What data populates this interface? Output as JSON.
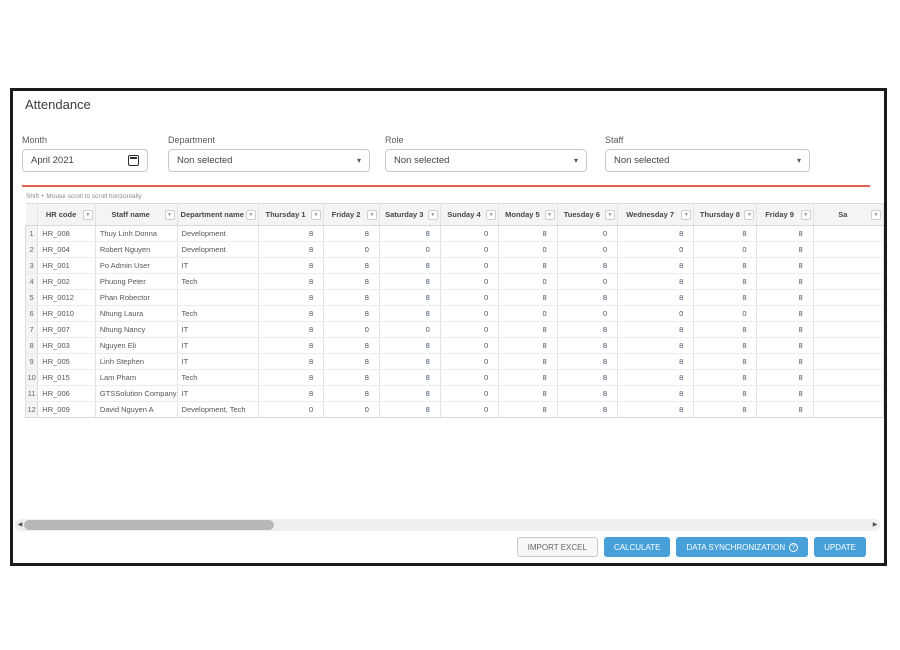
{
  "page": {
    "title": "Attendance"
  },
  "filters": {
    "month": {
      "label": "Month",
      "value": "April 2021"
    },
    "department": {
      "label": "Department",
      "value": "Non selected"
    },
    "role": {
      "label": "Role",
      "value": "Non selected"
    },
    "staff": {
      "label": "Staff",
      "value": "Non selected"
    }
  },
  "table": {
    "hint": "Shift + Mouse scroll to scroll horizontally",
    "columns": [
      "HR code",
      "Staff name",
      "Department name",
      "Thursday 1",
      "Friday 2",
      "Saturday 3",
      "Sunday 4",
      "Monday 5",
      "Tuesday 6",
      "Wednesday 7",
      "Thursday 8",
      "Friday 9",
      "Sa"
    ],
    "day_columns": [
      "Thursday 1",
      "Friday 2",
      "Saturday 3",
      "Sunday 4",
      "Monday 5",
      "Tuesday 6",
      "Wednesday 7",
      "Thursday 8",
      "Friday 9"
    ],
    "rows": [
      {
        "index": 1,
        "hr_code": "HR_008",
        "staff_name": "Thuy Linh Donna",
        "department": "Development",
        "values": [
          8,
          8,
          8,
          0,
          8,
          0,
          8,
          8,
          8
        ]
      },
      {
        "index": 2,
        "hr_code": "HR_004",
        "staff_name": "Robert Nguyen",
        "department": "Development",
        "values": [
          8,
          0,
          0,
          0,
          0,
          0,
          0,
          0,
          8
        ]
      },
      {
        "index": 3,
        "hr_code": "HR_001",
        "staff_name": "Po Admin User",
        "department": "IT",
        "values": [
          8,
          8,
          8,
          0,
          8,
          8,
          8,
          8,
          8
        ]
      },
      {
        "index": 4,
        "hr_code": "HR_002",
        "staff_name": "Phuong Peter",
        "department": "Tech",
        "values": [
          8,
          8,
          8,
          0,
          0,
          0,
          8,
          8,
          8
        ]
      },
      {
        "index": 5,
        "hr_code": "HR_0012",
        "staff_name": "Phan Robector",
        "department": "",
        "values": [
          8,
          8,
          8,
          0,
          8,
          8,
          8,
          8,
          8
        ]
      },
      {
        "index": 6,
        "hr_code": "HR_0010",
        "staff_name": "Nhung Laura",
        "department": "Tech",
        "values": [
          8,
          8,
          8,
          0,
          0,
          0,
          0,
          0,
          8
        ]
      },
      {
        "index": 7,
        "hr_code": "HR_007",
        "staff_name": "Nhung Nancy",
        "department": "IT",
        "values": [
          8,
          0,
          0,
          0,
          8,
          8,
          8,
          8,
          8
        ]
      },
      {
        "index": 8,
        "hr_code": "HR_003",
        "staff_name": "Nguyen Eli",
        "department": "IT",
        "values": [
          8,
          8,
          8,
          0,
          8,
          8,
          8,
          8,
          8
        ]
      },
      {
        "index": 9,
        "hr_code": "HR_005",
        "staff_name": "Linh Stephen",
        "department": "IT",
        "values": [
          8,
          8,
          8,
          0,
          8,
          8,
          8,
          8,
          8
        ]
      },
      {
        "index": 10,
        "hr_code": "HR_015",
        "staff_name": "Lam Pham",
        "department": "Tech",
        "values": [
          8,
          8,
          8,
          0,
          8,
          8,
          8,
          8,
          8
        ]
      },
      {
        "index": 11,
        "hr_code": "HR_006",
        "staff_name": "GTSSolution Company",
        "department": "IT",
        "values": [
          8,
          8,
          8,
          0,
          8,
          8,
          8,
          8,
          8
        ]
      },
      {
        "index": 12,
        "hr_code": "HR_009",
        "staff_name": "David Nguyen A",
        "department": "Development, Tech",
        "values": [
          0,
          0,
          8,
          0,
          8,
          8,
          8,
          8,
          8
        ]
      }
    ]
  },
  "actions": {
    "import_excel": "IMPORT EXCEL",
    "calculate": "CALCULATE",
    "data_sync": "DATA SYNCHRONIZATION",
    "data_sync_icon": "?",
    "update": "UPDATE"
  },
  "colors": {
    "accent_blue": "#47a0d8",
    "divider_red": "#e0604f",
    "frame_border": "#1b1b1b"
  }
}
